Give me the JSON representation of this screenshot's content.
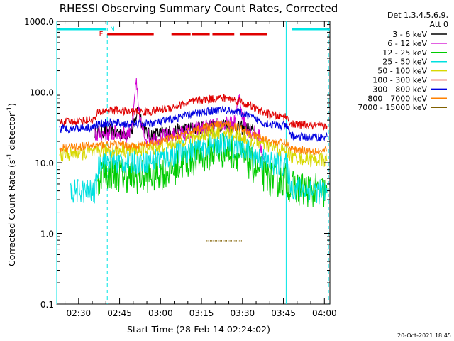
{
  "chart_data": {
    "type": "line",
    "title": "RHESSI Observing Summary Count Rates, Corrected",
    "xlabel": "Start Time (28-Feb-14 02:24:02)",
    "ylabel_main": "Corrected Count Rate (s",
    "ylabel_sup1": "-1",
    "ylabel_mid": " detector",
    "ylabel_sup2": "-1",
    "ylabel_end": ")",
    "y_scale": "log",
    "ylim": [
      0.1,
      1000
    ],
    "xlim_minutes": [
      142,
      242
    ],
    "x_ticks": [
      {
        "minute": 150,
        "label": "02:30"
      },
      {
        "minute": 165,
        "label": "02:45"
      },
      {
        "minute": 180,
        "label": "03:00"
      },
      {
        "minute": 195,
        "label": "03:15"
      },
      {
        "minute": 210,
        "label": "03:30"
      },
      {
        "minute": 225,
        "label": "03:45"
      },
      {
        "minute": 240,
        "label": "04:00"
      }
    ],
    "y_ticks": [
      {
        "value": 1000,
        "label": "1000.0"
      },
      {
        "value": 100,
        "label": "100.0"
      },
      {
        "value": 10,
        "label": "10.0"
      },
      {
        "value": 1,
        "label": "1.0"
      },
      {
        "value": 0.1,
        "label": "0.1"
      }
    ],
    "legend_header": [
      "Det 1,3,4,5,6,9,",
      "Att 0"
    ],
    "legend_position": "right",
    "footer_date": "20-Oct-2021 18:45",
    "flags": {
      "f_label": "F",
      "n_label": "N",
      "night_color": "#00e5e5",
      "flare_color": "#e00000",
      "night_segments": [
        [
          142,
          160
        ],
        [
          228,
          242
        ]
      ],
      "flare_segments": [
        [
          160.5,
          177.5
        ],
        [
          184,
          191
        ],
        [
          191.5,
          198
        ],
        [
          199,
          207
        ],
        [
          209,
          219
        ]
      ]
    },
    "vlines_minute": [
      142,
      160.5,
      226,
      241.5
    ],
    "series": [
      {
        "name": "3 - 6 keV",
        "color": "#000000",
        "points": [
          [
            156,
            27
          ],
          [
            160,
            28
          ],
          [
            164,
            27
          ],
          [
            168,
            26
          ],
          [
            170,
            30
          ],
          [
            172,
            65
          ],
          [
            173,
            40
          ],
          [
            175,
            25
          ],
          [
            180,
            26
          ],
          [
            185,
            28
          ],
          [
            190,
            30
          ],
          [
            195,
            32
          ],
          [
            200,
            34
          ],
          [
            203,
            35
          ],
          [
            206,
            33
          ],
          [
            209,
            31
          ],
          [
            212,
            30
          ],
          [
            214,
            28
          ]
        ]
      },
      {
        "name": "6 - 12 keV",
        "color": "#d000d0",
        "points": [
          [
            156,
            25
          ],
          [
            160,
            26
          ],
          [
            164,
            26
          ],
          [
            168,
            25
          ],
          [
            170,
            40
          ],
          [
            171,
            150
          ],
          [
            172,
            50
          ],
          [
            174,
            24
          ],
          [
            178,
            22
          ],
          [
            183,
            24
          ],
          [
            188,
            26
          ],
          [
            193,
            29
          ],
          [
            198,
            32
          ],
          [
            203,
            34
          ],
          [
            207,
            36
          ],
          [
            209,
            90
          ],
          [
            210,
            45
          ],
          [
            212,
            30
          ],
          [
            216,
            24
          ],
          [
            218,
            10
          ]
        ]
      },
      {
        "name": "12 - 25 keV",
        "color": "#00cc00",
        "points": [
          [
            157,
            4.2
          ],
          [
            158,
            7.5
          ],
          [
            163,
            7.0
          ],
          [
            168,
            6.5
          ],
          [
            172,
            6.3
          ],
          [
            177,
            6.6
          ],
          [
            182,
            7.5
          ],
          [
            187,
            9.2
          ],
          [
            192,
            11.3
          ],
          [
            197,
            13.2
          ],
          [
            201,
            14.6
          ],
          [
            204,
            14.8
          ],
          [
            208,
            13.5
          ],
          [
            212,
            10.5
          ],
          [
            216,
            7.5
          ],
          [
            220,
            6.0
          ],
          [
            224,
            5.5
          ],
          [
            226,
            5.8
          ],
          [
            228,
            4.4
          ],
          [
            232,
            4.2
          ],
          [
            236,
            4.0
          ],
          [
            241,
            3.8
          ]
        ]
      },
      {
        "name": "25 - 50 keV",
        "color": "#00e0e0",
        "points": [
          [
            147,
            3.8
          ],
          [
            150,
            4.0
          ],
          [
            156,
            3.8
          ],
          [
            157,
            7.5
          ],
          [
            158,
            11.0
          ],
          [
            163,
            10.5
          ],
          [
            168,
            10.3
          ],
          [
            172,
            10.5
          ],
          [
            177,
            10.8
          ],
          [
            182,
            12.0
          ],
          [
            187,
            14.0
          ],
          [
            192,
            15.5
          ],
          [
            197,
            17.0
          ],
          [
            201,
            18.0
          ],
          [
            204,
            18.2
          ],
          [
            208,
            17.0
          ],
          [
            212,
            14.5
          ],
          [
            216,
            11.5
          ],
          [
            220,
            10.0
          ],
          [
            224,
            9.5
          ],
          [
            226,
            9.8
          ],
          [
            228,
            4.5
          ],
          [
            232,
            4.2
          ],
          [
            236,
            4.0
          ],
          [
            241,
            3.8
          ]
        ]
      },
      {
        "name": "50 - 100 keV",
        "color": "#d8d800",
        "points": [
          [
            143,
            13
          ],
          [
            150,
            13.5
          ],
          [
            156,
            14
          ],
          [
            160,
            15
          ],
          [
            164,
            15
          ],
          [
            168,
            15
          ],
          [
            172,
            15.5
          ],
          [
            176,
            16
          ],
          [
            180,
            17
          ],
          [
            185,
            19
          ],
          [
            190,
            22
          ],
          [
            195,
            25
          ],
          [
            200,
            27
          ],
          [
            203,
            27.5
          ],
          [
            206,
            26
          ],
          [
            209,
            24
          ],
          [
            212,
            22
          ],
          [
            216,
            19
          ],
          [
            220,
            17
          ],
          [
            224,
            15
          ],
          [
            226,
            15
          ],
          [
            228,
            12
          ],
          [
            232,
            11.5
          ],
          [
            236,
            11
          ],
          [
            241,
            11
          ]
        ]
      },
      {
        "name": "100 - 300 keV",
        "color": "#e00000",
        "points": [
          [
            143,
            37
          ],
          [
            150,
            39
          ],
          [
            156,
            41
          ],
          [
            157,
            50
          ],
          [
            160,
            55
          ],
          [
            164,
            55
          ],
          [
            168,
            53
          ],
          [
            172,
            52
          ],
          [
            176,
            53
          ],
          [
            180,
            56
          ],
          [
            185,
            62
          ],
          [
            190,
            70
          ],
          [
            195,
            77
          ],
          [
            200,
            81
          ],
          [
            203,
            82
          ],
          [
            206,
            79
          ],
          [
            209,
            74
          ],
          [
            212,
            66
          ],
          [
            216,
            55
          ],
          [
            220,
            48
          ],
          [
            224,
            45
          ],
          [
            226,
            45
          ],
          [
            228,
            35
          ],
          [
            232,
            34
          ],
          [
            236,
            33
          ],
          [
            241,
            33
          ]
        ]
      },
      {
        "name": "300 - 800 keV",
        "color": "#0000e0",
        "points": [
          [
            143,
            30
          ],
          [
            150,
            31
          ],
          [
            156,
            32
          ],
          [
            157,
            35
          ],
          [
            160,
            36
          ],
          [
            164,
            36
          ],
          [
            168,
            35
          ],
          [
            172,
            35
          ],
          [
            176,
            36
          ],
          [
            180,
            38
          ],
          [
            185,
            42
          ],
          [
            190,
            47
          ],
          [
            195,
            52
          ],
          [
            200,
            55
          ],
          [
            203,
            56
          ],
          [
            206,
            54
          ],
          [
            209,
            51
          ],
          [
            212,
            46
          ],
          [
            216,
            39
          ],
          [
            220,
            35
          ],
          [
            224,
            33
          ],
          [
            226,
            33
          ],
          [
            228,
            24
          ],
          [
            232,
            23
          ],
          [
            236,
            23
          ],
          [
            241,
            23
          ]
        ]
      },
      {
        "name": "800 - 7000 keV",
        "color": "#ff8000",
        "points": [
          [
            143,
            16
          ],
          [
            150,
            17
          ],
          [
            156,
            17.5
          ],
          [
            160,
            18
          ],
          [
            164,
            18
          ],
          [
            168,
            17.5
          ],
          [
            172,
            17.5
          ],
          [
            176,
            18
          ],
          [
            180,
            20
          ],
          [
            185,
            23
          ],
          [
            190,
            27
          ],
          [
            195,
            31
          ],
          [
            200,
            34
          ],
          [
            203,
            35
          ],
          [
            206,
            33.5
          ],
          [
            209,
            31
          ],
          [
            212,
            28
          ],
          [
            216,
            23
          ],
          [
            220,
            20
          ],
          [
            224,
            19
          ],
          [
            226,
            19
          ],
          [
            228,
            15.5
          ],
          [
            232,
            15
          ],
          [
            236,
            14.8
          ],
          [
            241,
            14.5
          ]
        ]
      },
      {
        "name": "7000 - 15000 keV",
        "color": "#806000",
        "points": [
          [
            197,
            0.8
          ],
          [
            210,
            0.8
          ]
        ]
      }
    ]
  }
}
